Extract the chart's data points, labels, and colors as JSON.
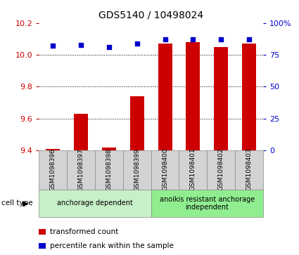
{
  "title": "GDS5140 / 10498024",
  "samples": [
    "GSM1098396",
    "GSM1098397",
    "GSM1098398",
    "GSM1098399",
    "GSM1098400",
    "GSM1098401",
    "GSM1098402",
    "GSM1098403"
  ],
  "transformed_counts": [
    9.41,
    9.63,
    9.42,
    9.74,
    10.07,
    10.08,
    10.05,
    10.07
  ],
  "percentile_ranks": [
    82,
    83,
    81,
    84,
    87,
    87,
    87,
    87
  ],
  "ylim_left": [
    9.4,
    10.2
  ],
  "ylim_right": [
    0,
    100
  ],
  "yticks_left": [
    9.4,
    9.6,
    9.8,
    10.0,
    10.2
  ],
  "yticks_right": [
    0,
    25,
    50,
    75,
    100
  ],
  "groups": [
    {
      "label": "anchorage dependent",
      "indices": [
        0,
        1,
        2,
        3
      ],
      "color": "#c8f0c8"
    },
    {
      "label": "anoikis resistant anchorage\nindependent",
      "indices": [
        4,
        5,
        6,
        7
      ],
      "color": "#90ee90"
    }
  ],
  "bar_color": "#cc0000",
  "dot_color": "#0000cc",
  "bar_width": 0.5,
  "legend_items": [
    {
      "color": "#cc0000",
      "label": "transformed count"
    },
    {
      "color": "#0000cc",
      "label": "percentile rank within the sample"
    }
  ],
  "group_label": "cell type",
  "tick_color_left": "#cc0000",
  "tick_color_right": "#0000cc",
  "grid_color": "#000000",
  "sample_bg_color": "#d3d3d3"
}
